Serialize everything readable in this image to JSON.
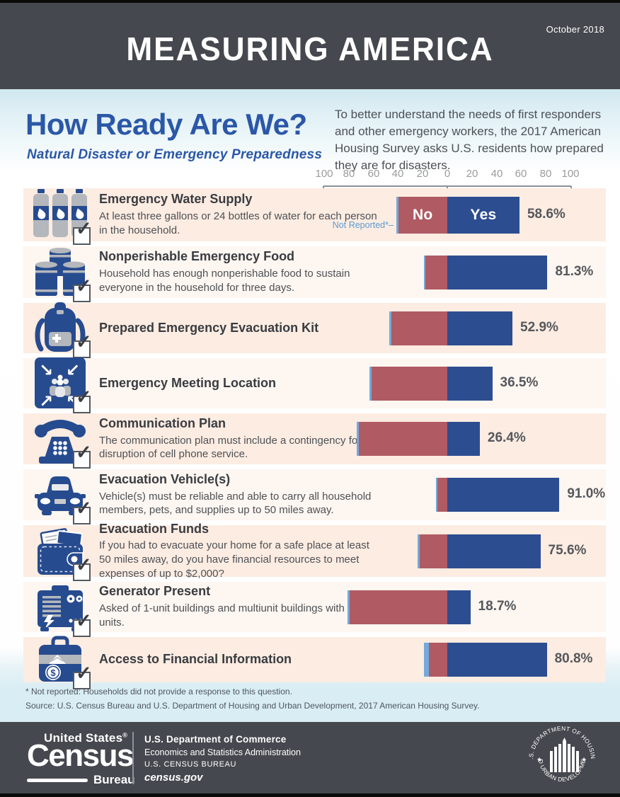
{
  "header": {
    "issue_date": "October 2018",
    "title": "MEASURING AMERICA"
  },
  "intro": {
    "title": "How Ready Are We?",
    "subtitle": "Natural Disaster or Emergency Preparedness",
    "description": "To better understand the needs of first responders and other emergency workers, the 2017 American Housing Survey asks U.S. residents how prepared they are for disasters."
  },
  "theme": {
    "title_blue": "#2b57a7",
    "not_reported_text": "#5b9bd3"
  },
  "chart_data": {
    "type": "bar",
    "orientation": "horizontal-diverging",
    "unit": "percent of households",
    "axis_ticks": [
      100,
      80,
      60,
      40,
      20,
      0,
      20,
      40,
      60,
      80,
      100
    ],
    "axis_max_each_side": 100,
    "legend": {
      "no_label": "No",
      "yes_label": "Yes",
      "not_reported_label": "Not Reported*–"
    },
    "colors": {
      "yes": "#2c4d90",
      "no": "#b05a63",
      "not_reported": "#74a9db",
      "row_band_odd": "#fcece2",
      "row_band_even": "#fdf6f1"
    },
    "rows": [
      {
        "icon": "water-bottles-icon",
        "title": "Emergency Water Supply",
        "description": "At least three gallons or 24 bottles of water for each person in the household.",
        "yes_pct": 58.6,
        "no_pct": 39.9,
        "not_reported_pct": 1.5,
        "value_label": "58.6%"
      },
      {
        "icon": "food-cans-icon",
        "title": "Nonperishable Emergency Food",
        "description": "Household has enough nonperishable food to sustain everyone in the household for three days.",
        "yes_pct": 81.3,
        "no_pct": 17.7,
        "not_reported_pct": 1.0,
        "value_label": "81.3%"
      },
      {
        "icon": "backpack-icon",
        "title": "Prepared Emergency Evacuation Kit",
        "description": "",
        "yes_pct": 52.9,
        "no_pct": 45.4,
        "not_reported_pct": 1.7,
        "value_label": "52.9%"
      },
      {
        "icon": "meeting-location-icon",
        "title": "Emergency Meeting Location",
        "description": "",
        "yes_pct": 36.5,
        "no_pct": 61.5,
        "not_reported_pct": 2.0,
        "value_label": "36.5%"
      },
      {
        "icon": "telephone-icon",
        "title": "Communication Plan",
        "description": "The communication plan must include a contingency for the disruption of cell phone service.",
        "yes_pct": 26.4,
        "no_pct": 71.8,
        "not_reported_pct": 1.8,
        "value_label": "26.4%"
      },
      {
        "icon": "car-icon",
        "title": "Evacuation Vehicle(s)",
        "description": "Vehicle(s) must be reliable and able to carry all household members, pets, and supplies up to 50 miles away.",
        "yes_pct": 91.0,
        "no_pct": 8.0,
        "not_reported_pct": 1.0,
        "value_label": "91.0%"
      },
      {
        "icon": "wallet-icon",
        "title": "Evacuation Funds",
        "description": "If you had to evacuate your home for a safe place at least 50 miles away, do you have financial resources to meet expenses of up to $2,000?",
        "yes_pct": 75.6,
        "no_pct": 22.4,
        "not_reported_pct": 2.0,
        "value_label": "75.6%"
      },
      {
        "icon": "generator-icon",
        "title": "Generator Present",
        "description": "Asked of 1-unit buildings and multiunit buildings with 2 to 4 units.",
        "yes_pct": 18.7,
        "no_pct": 79.3,
        "not_reported_pct": 2.0,
        "value_label": "18.7%"
      },
      {
        "icon": "money-briefcase-icon",
        "title": "Access to Financial Information",
        "description": "",
        "yes_pct": 80.8,
        "no_pct": 14.7,
        "not_reported_pct": 4.5,
        "value_label": "80.8%"
      }
    ]
  },
  "footnotes": {
    "note": "* Not reported: Households did not provide a response to this question.",
    "source": "Source: U.S. Census Bureau and U.S. Department of Housing and Urban Development, 2017 American Housing Survey."
  },
  "footer": {
    "logo": {
      "top": "United States",
      "registered": "®",
      "main": "Census",
      "bureau": "Bureau"
    },
    "agency": {
      "line1": "U.S. Department of Commerce",
      "line2": "Economics and Statistics Administration",
      "line3": "U.S. CENSUS BUREAU",
      "site": "census.gov"
    },
    "hud_seal": {
      "arc_top": "U.S. DEPARTMENT OF HOUSING",
      "arc_bottom": "AND URBAN DEVELOPMENT"
    }
  }
}
